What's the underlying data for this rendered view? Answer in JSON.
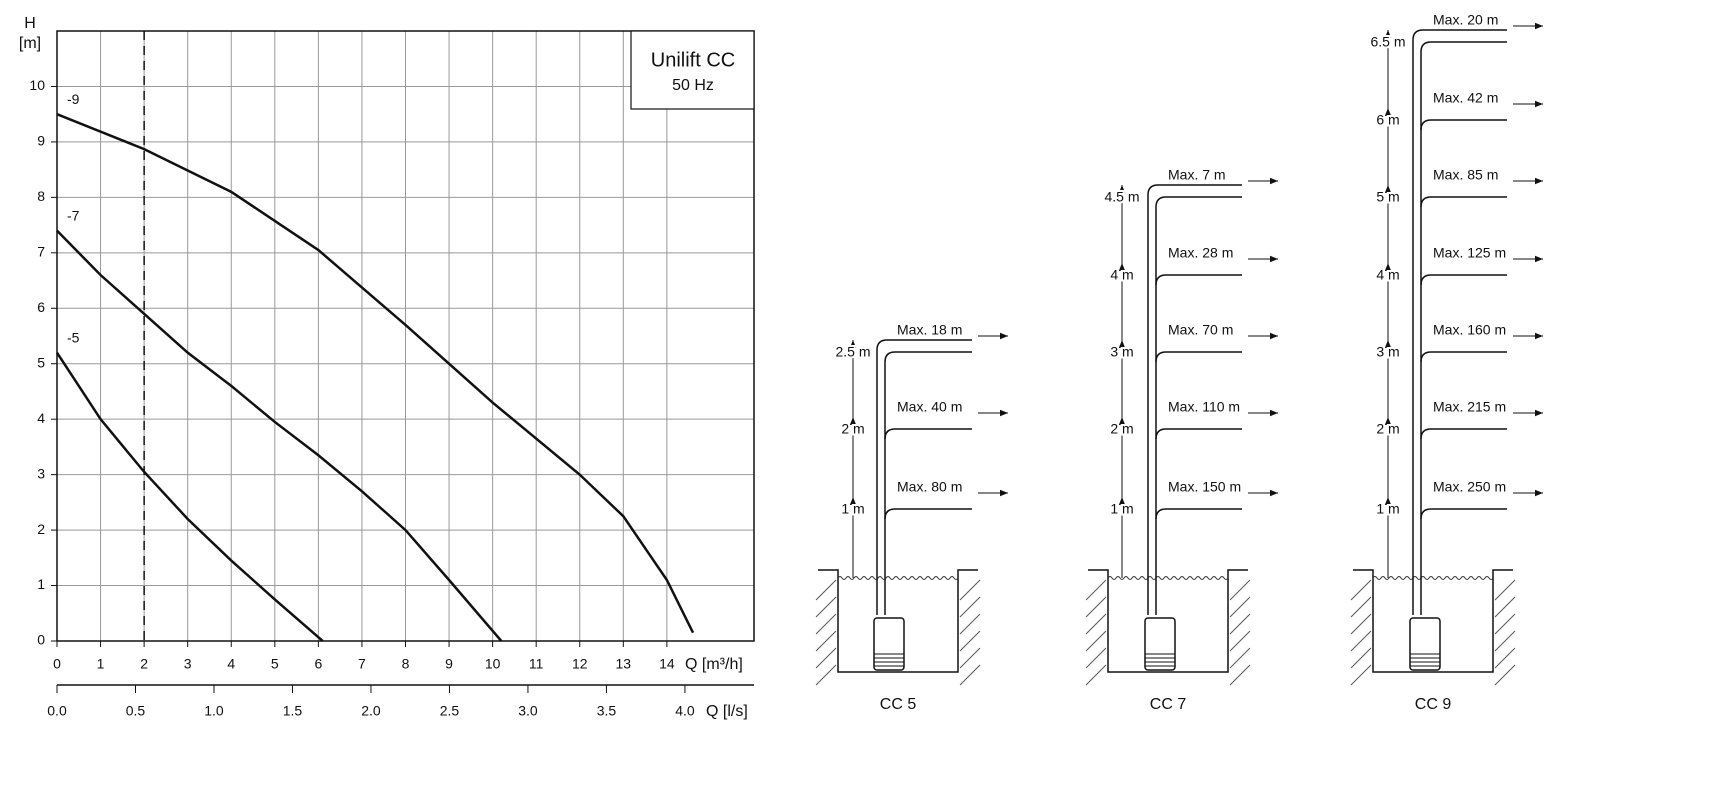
{
  "chart_data": {
    "type": "line",
    "box_text": [
      "Unilift CC",
      "50 Hz"
    ],
    "ylabel": "H",
    "yunit": "[m]",
    "xlabel": "Q [m³/h]",
    "x2label": "Q [l/s]",
    "xlim": [
      0,
      16
    ],
    "ylim": [
      0,
      11
    ],
    "xticks": [
      0,
      1,
      2,
      3,
      4,
      5,
      6,
      7,
      8,
      9,
      10,
      11,
      12,
      13,
      14
    ],
    "yticks": [
      0,
      1,
      2,
      3,
      4,
      5,
      6,
      7,
      8,
      9,
      10
    ],
    "x2lim": [
      0,
      4.44
    ],
    "x2ticks": [
      {
        "value": 0,
        "label": "0.0"
      },
      {
        "value": 0.5,
        "label": "0.5"
      },
      {
        "value": 1,
        "label": "1.0"
      },
      {
        "value": 1.5,
        "label": "1.5"
      },
      {
        "value": 2,
        "label": "2.0"
      },
      {
        "value": 2.5,
        "label": "2.5"
      },
      {
        "value": 3,
        "label": "3.0"
      },
      {
        "value": 3.5,
        "label": "3.5"
      },
      {
        "value": 4,
        "label": "4.0"
      }
    ],
    "grid": true,
    "vline": 2,
    "series": [
      {
        "name": "-9",
        "color": "#111111",
        "x": [
          0,
          2,
          4,
          6,
          8,
          10,
          12,
          13,
          14,
          14.6
        ],
        "values": [
          9.5,
          8.87,
          8.1,
          7.05,
          5.7,
          4.3,
          3.0,
          2.25,
          1.1,
          0.15
        ]
      },
      {
        "name": "-7",
        "color": "#111111",
        "x": [
          0,
          1,
          2,
          3,
          4,
          5,
          6,
          7,
          8,
          9,
          10.2
        ],
        "values": [
          7.4,
          6.6,
          5.9,
          5.2,
          4.6,
          3.95,
          3.35,
          2.7,
          2.0,
          1.1,
          0
        ]
      },
      {
        "name": "-5",
        "color": "#111111",
        "x": [
          0,
          1,
          2,
          3,
          4,
          5,
          6.1
        ],
        "values": [
          5.2,
          4.0,
          3.05,
          2.2,
          1.45,
          0.75,
          0
        ]
      }
    ]
  },
  "diagrams": [
    {
      "name": "CC 5",
      "levels": [
        {
          "height": "1 m",
          "max": "Max. 80 m"
        },
        {
          "height": "2 m",
          "max": "Max. 40 m"
        },
        {
          "height": "2.5 m",
          "max": "Max. 18 m"
        }
      ]
    },
    {
      "name": "CC 7",
      "levels": [
        {
          "height": "1 m",
          "max": "Max. 150 m"
        },
        {
          "height": "2 m",
          "max": "Max. 110 m"
        },
        {
          "height": "3 m",
          "max": "Max. 70 m"
        },
        {
          "height": "4 m",
          "max": "Max. 28 m"
        },
        {
          "height": "4.5 m",
          "max": "Max. 7 m"
        }
      ]
    },
    {
      "name": "CC 9",
      "levels": [
        {
          "height": "1 m",
          "max": "Max. 250 m"
        },
        {
          "height": "2 m",
          "max": "Max. 215 m"
        },
        {
          "height": "3 m",
          "max": "Max. 160 m"
        },
        {
          "height": "4 m",
          "max": "Max. 125 m"
        },
        {
          "height": "5 m",
          "max": "Max. 85 m"
        },
        {
          "height": "6 m",
          "max": "Max. 42 m"
        },
        {
          "height": "6.5 m",
          "max": "Max. 20 m"
        }
      ]
    }
  ]
}
